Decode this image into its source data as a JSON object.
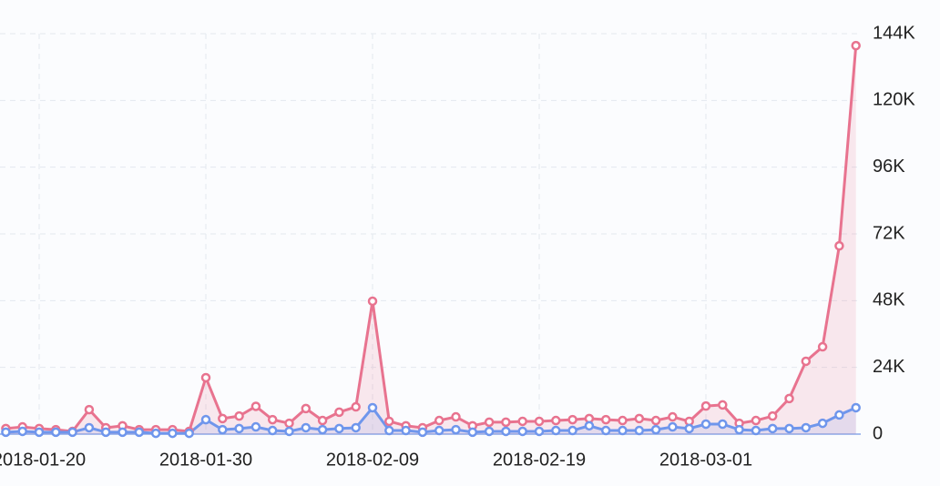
{
  "chart_data": {
    "type": "line",
    "categories": [
      null,
      null,
      "2018-01-20",
      null,
      null,
      null,
      null,
      null,
      null,
      null,
      null,
      null,
      "2018-01-30",
      null,
      null,
      null,
      null,
      null,
      null,
      null,
      null,
      null,
      "2018-02-09",
      null,
      null,
      null,
      null,
      null,
      null,
      null,
      null,
      null,
      "2018-02-19",
      null,
      null,
      null,
      null,
      null,
      null,
      null,
      null,
      null,
      "2018-03-01",
      null,
      null,
      null,
      null,
      null,
      null,
      null,
      null,
      null
    ],
    "series": [
      {
        "color": "#e8738f",
        "values": [
          2000,
          2600,
          2000,
          1600,
          1000,
          8800,
          2300,
          3000,
          1600,
          1600,
          1600,
          1000,
          20300,
          5600,
          6500,
          10000,
          5200,
          3900,
          9200,
          4900,
          7900,
          9800,
          47800,
          4600,
          3000,
          2300,
          4900,
          6200,
          3000,
          4300,
          4300,
          4600,
          4600,
          4900,
          5200,
          5600,
          5200,
          4900,
          5600,
          4900,
          6200,
          4600,
          10100,
          10500,
          3900,
          4900,
          6500,
          12800,
          26200,
          31400,
          67700,
          139700
        ]
      },
      {
        "color": "#6f96ec",
        "values": [
          700,
          1000,
          700,
          700,
          700,
          2300,
          700,
          700,
          700,
          300,
          300,
          300,
          5200,
          1600,
          2000,
          2600,
          1300,
          1000,
          2300,
          1600,
          2000,
          2300,
          9500,
          1300,
          1300,
          700,
          1300,
          1600,
          700,
          1000,
          1000,
          1000,
          1000,
          1300,
          1300,
          3000,
          1300,
          1300,
          1300,
          1600,
          2600,
          2000,
          3600,
          3600,
          1600,
          1300,
          2000,
          2000,
          2300,
          3900,
          6900,
          9500
        ]
      }
    ],
    "ylim": [
      0,
      144000
    ],
    "yticks": [
      0,
      {
        "value": 24000,
        "label": "24K"
      },
      {
        "value": 48000,
        "label": "48K"
      },
      {
        "value": 72000,
        "label": "72K"
      },
      {
        "value": 96000,
        "label": "96K"
      },
      {
        "value": 120000,
        "label": "120K"
      },
      {
        "value": 144000,
        "label": "144K"
      }
    ],
    "grid": true
  }
}
